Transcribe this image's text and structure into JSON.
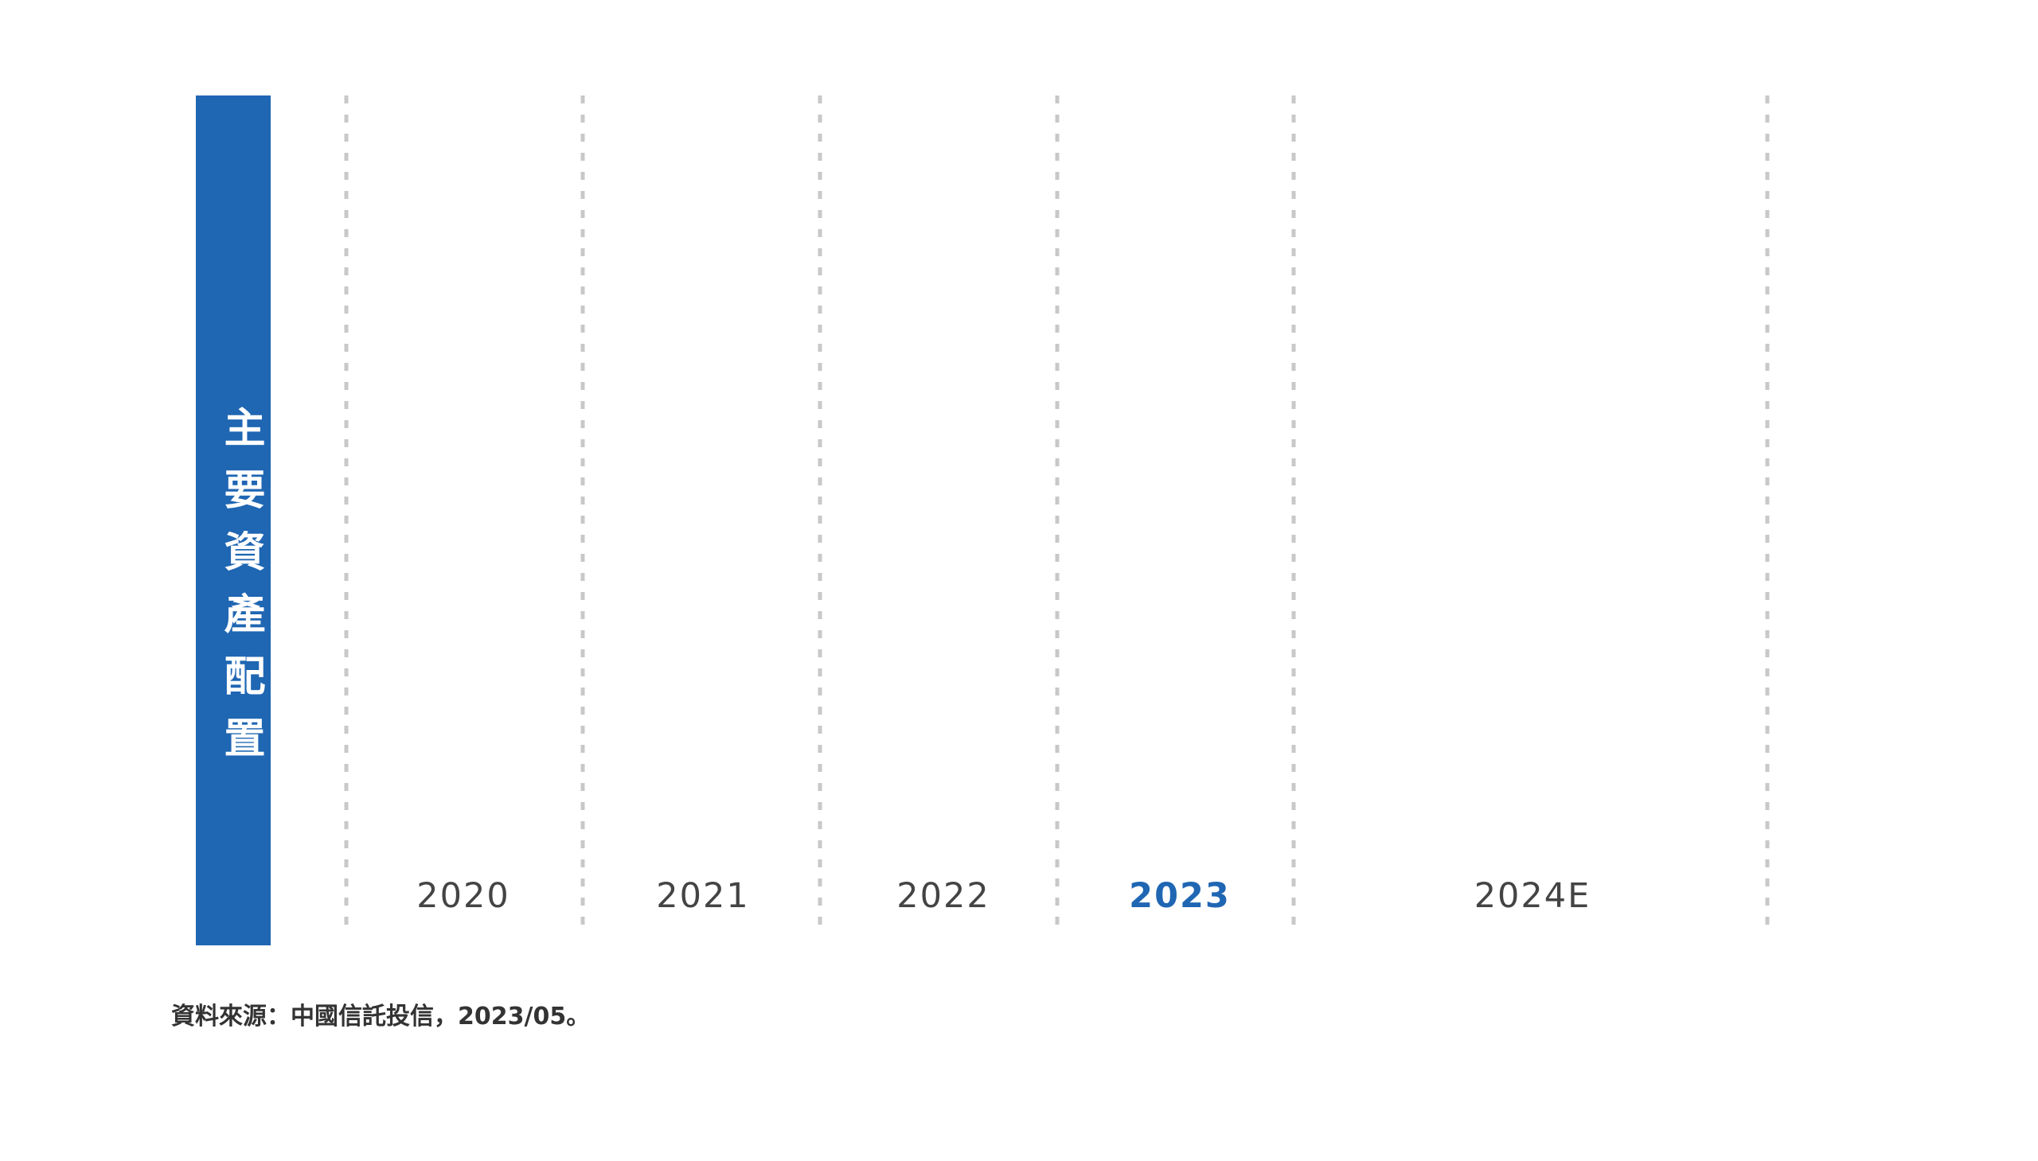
{
  "side_label": "主要資產配置",
  "columns": [
    "2020",
    "2021",
    "2022",
    "2023",
    "2024E"
  ],
  "source": "資料來源：中國信託投信，2023/05。"
}
